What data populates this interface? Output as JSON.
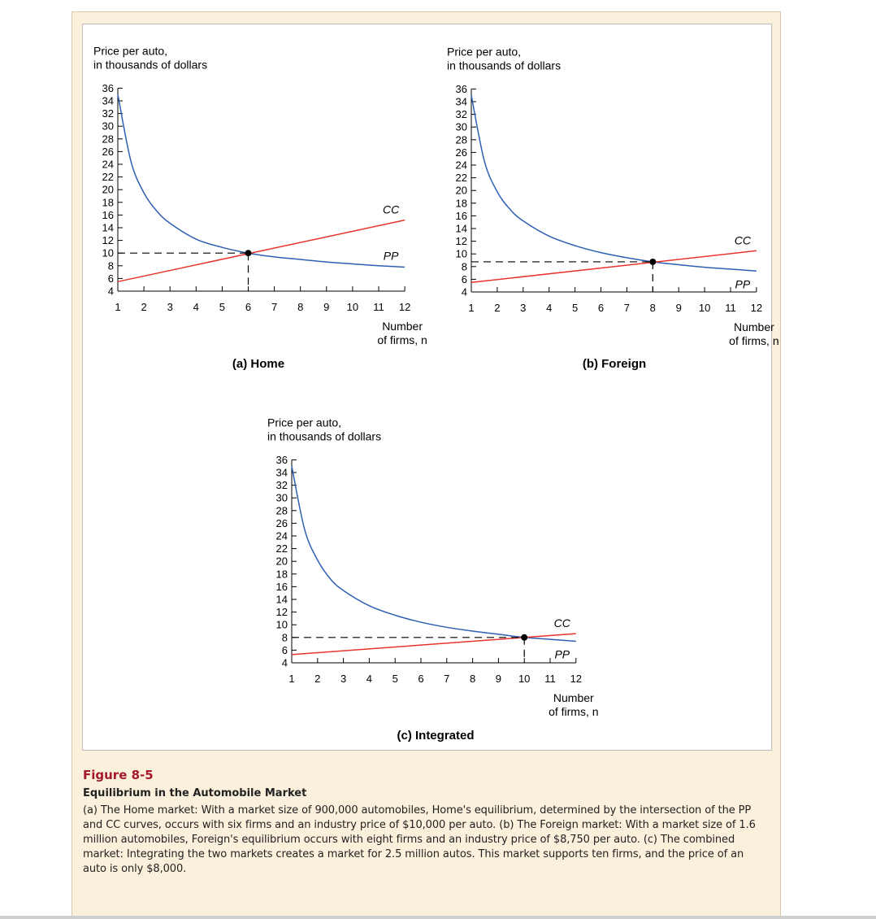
{
  "figure": {
    "number": "Figure 8-5",
    "title": "Equilibrium in the Automobile Market",
    "caption": "(a) The Home market: With a market size of 900,000 automobiles, Home's equilibrium, determined by the intersection of the PP and CC curves, occurs with six firms and an industry price of $10,000 per auto. (b) The Foreign market: With a market size of 1.6 million automobiles, Foreign's equilibrium occurs with eight firms and an industry price of $8,750 per auto. (c) The combined market: Integrating the two markets creates a market for 2.5 million autos. This market supports ten firms, and the price of an auto is only $8,000."
  },
  "colors": {
    "pp_curve": "#2f5fb3",
    "cc_curve": "#e8342c",
    "guide": "#000000"
  },
  "chart_data": [
    {
      "type": "line",
      "title": "(a) Home",
      "ylabel_line1": "Price per auto,",
      "ylabel_line2": "in thousands of dollars",
      "xlabel_line1": "Number",
      "xlabel_line2": "of firms, n",
      "xlim": [
        1,
        12
      ],
      "ylim": [
        4,
        36
      ],
      "x_ticks": [
        1,
        2,
        3,
        4,
        5,
        6,
        7,
        8,
        9,
        10,
        11,
        12
      ],
      "y_ticks": [
        4,
        6,
        8,
        10,
        12,
        14,
        16,
        18,
        20,
        22,
        24,
        26,
        28,
        30,
        32,
        34,
        36
      ],
      "series": [
        {
          "name": "PP",
          "color": "#2f5fb3",
          "x": [
            1,
            1.5,
            2,
            2.5,
            3,
            4,
            5,
            6,
            7,
            8,
            9,
            10,
            11,
            12
          ],
          "y": [
            35,
            24.5,
            19.5,
            16.6,
            14.7,
            12.2,
            10.9,
            10,
            9.4,
            9,
            8.6,
            8.3,
            8.0,
            7.8
          ]
        },
        {
          "name": "CC",
          "color": "#e8342c",
          "x": [
            1,
            12
          ],
          "y": [
            5.5,
            15.2
          ]
        }
      ],
      "equilibrium": {
        "x": 6,
        "y": 10
      }
    },
    {
      "type": "line",
      "title": "(b) Foreign",
      "ylabel_line1": "Price per auto,",
      "ylabel_line2": "in thousands of dollars",
      "xlabel_line1": "Number",
      "xlabel_line2": "of firms, n",
      "xlim": [
        1,
        12
      ],
      "ylim": [
        4,
        36
      ],
      "x_ticks": [
        1,
        2,
        3,
        4,
        5,
        6,
        7,
        8,
        9,
        10,
        11,
        12
      ],
      "y_ticks": [
        4,
        6,
        8,
        10,
        12,
        14,
        16,
        18,
        20,
        22,
        24,
        26,
        28,
        30,
        32,
        34,
        36
      ],
      "series": [
        {
          "name": "PP",
          "color": "#2f5fb3",
          "x": [
            1,
            1.5,
            2,
            2.5,
            3,
            4,
            5,
            6,
            7,
            8,
            9,
            10,
            11,
            12
          ],
          "y": [
            35,
            24.7,
            19.8,
            17,
            15.2,
            12.8,
            11.3,
            10.2,
            9.4,
            8.75,
            8.3,
            7.9,
            7.6,
            7.3
          ]
        },
        {
          "name": "CC",
          "color": "#e8342c",
          "x": [
            1,
            12
          ],
          "y": [
            5.5,
            10.5
          ]
        }
      ],
      "equilibrium": {
        "x": 8,
        "y": 8.75
      }
    },
    {
      "type": "line",
      "title": "(c) Integrated",
      "ylabel_line1": "Price per auto,",
      "ylabel_line2": "in thousands of dollars",
      "xlabel_line1": "Number",
      "xlabel_line2": "of firms, n",
      "xlim": [
        1,
        12
      ],
      "ylim": [
        4,
        36
      ],
      "x_ticks": [
        1,
        2,
        3,
        4,
        5,
        6,
        7,
        8,
        9,
        10,
        11,
        12
      ],
      "y_ticks": [
        4,
        6,
        8,
        10,
        12,
        14,
        16,
        18,
        20,
        22,
        24,
        26,
        28,
        30,
        32,
        34,
        36
      ],
      "series": [
        {
          "name": "PP",
          "color": "#2f5fb3",
          "x": [
            1,
            1.5,
            2,
            2.5,
            3,
            4,
            5,
            6,
            7,
            8,
            9,
            10,
            11,
            12
          ],
          "y": [
            35,
            25,
            20.2,
            17.2,
            15.4,
            13,
            11.5,
            10.4,
            9.6,
            9,
            8.5,
            8,
            7.7,
            7.4
          ]
        },
        {
          "name": "CC",
          "color": "#e8342c",
          "x": [
            1,
            12
          ],
          "y": [
            5.3,
            8.6
          ]
        }
      ],
      "equilibrium": {
        "x": 10,
        "y": 8
      }
    }
  ]
}
